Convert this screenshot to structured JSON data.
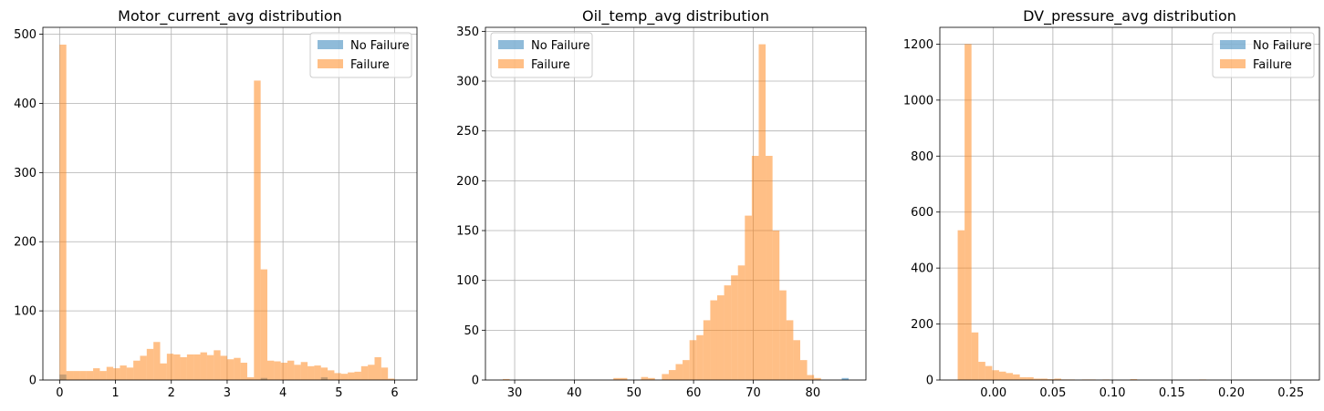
{
  "figure": {
    "background": "#ffffff"
  },
  "colors": {
    "no_failure": "#1f77b4",
    "failure": "#ff7f0e",
    "grid": "#b0b0b0",
    "axis": "#000000"
  },
  "chart_data": [
    {
      "type": "bar",
      "title": "Motor_current_avg distribution",
      "xlabel": "",
      "ylabel": "",
      "xlim": [
        -0.3,
        6.4
      ],
      "ylim": [
        0,
        510
      ],
      "xticks": [
        0,
        1,
        2,
        3,
        4,
        5,
        6
      ],
      "xtick_labels": [
        "0",
        "1",
        "2",
        "3",
        "4",
        "5",
        "6"
      ],
      "yticks": [
        0,
        100,
        200,
        300,
        400,
        500
      ],
      "ytick_labels": [
        "0",
        "100",
        "200",
        "300",
        "400",
        "500"
      ],
      "grid": true,
      "legend_position": "upper right",
      "bin_edges": [
        0.0,
        0.12,
        0.24,
        0.36,
        0.48,
        0.6,
        0.72,
        0.84,
        0.96,
        1.08,
        1.2,
        1.32,
        1.44,
        1.56,
        1.68,
        1.8,
        1.92,
        2.04,
        2.16,
        2.28,
        2.4,
        2.52,
        2.64,
        2.76,
        2.88,
        3.0,
        3.12,
        3.24,
        3.36,
        3.48,
        3.6,
        3.72,
        3.84,
        3.96,
        4.08,
        4.2,
        4.32,
        4.44,
        4.56,
        4.68,
        4.8,
        4.92,
        5.04,
        5.16,
        5.28,
        5.4,
        5.52,
        5.64,
        5.76,
        5.88,
        6.0
      ],
      "series": [
        {
          "name": "No Failure",
          "color": "#1f77b4",
          "alpha": 0.5,
          "values": [
            8,
            0,
            0,
            0,
            0,
            0,
            0,
            0,
            0,
            0,
            0,
            0,
            0,
            0,
            0,
            0,
            0,
            0,
            0,
            0,
            0,
            0,
            0,
            0,
            0,
            0,
            0,
            0,
            0,
            0,
            3,
            0,
            0,
            0,
            0,
            0,
            0,
            0,
            0,
            4,
            0,
            0,
            0,
            0,
            0,
            0,
            0,
            0,
            0,
            0
          ]
        },
        {
          "name": "Failure",
          "color": "#ff7f0e",
          "alpha": 0.5,
          "values": [
            485,
            13,
            13,
            13,
            13,
            17,
            13,
            19,
            17,
            21,
            18,
            28,
            35,
            45,
            55,
            24,
            38,
            37,
            33,
            37,
            37,
            40,
            36,
            43,
            35,
            30,
            32,
            25,
            4,
            433,
            160,
            28,
            27,
            25,
            28,
            22,
            26,
            20,
            21,
            18,
            14,
            10,
            9,
            11,
            12,
            20,
            22,
            33,
            18,
            2
          ]
        }
      ]
    },
    {
      "type": "bar",
      "title": "Oil_temp_avg distribution",
      "xlabel": "",
      "ylabel": "",
      "xlim": [
        25.1,
        88.9
      ],
      "ylim": [
        0,
        354
      ],
      "xticks": [
        30,
        40,
        50,
        60,
        70,
        80
      ],
      "xtick_labels": [
        "30",
        "40",
        "50",
        "60",
        "70",
        "80"
      ],
      "yticks": [
        0,
        50,
        100,
        150,
        200,
        250,
        300,
        350
      ],
      "ytick_labels": [
        "0",
        "50",
        "100",
        "150",
        "200",
        "250",
        "300",
        "350"
      ],
      "grid": true,
      "legend_position": "upper left",
      "bin_edges": [
        28.0,
        29.16,
        30.32,
        31.48,
        32.64,
        33.8,
        34.96,
        36.12,
        37.28,
        38.44,
        39.6,
        40.76,
        41.92,
        43.08,
        44.24,
        45.4,
        46.56,
        47.72,
        48.88,
        50.04,
        51.2,
        52.36,
        53.52,
        54.68,
        55.84,
        57.0,
        58.16,
        59.32,
        60.48,
        61.64,
        62.8,
        63.96,
        65.12,
        66.28,
        67.44,
        68.6,
        69.76,
        70.92,
        72.08,
        73.24,
        74.4,
        75.56,
        76.72,
        77.88,
        79.04,
        80.2,
        81.36,
        82.52,
        83.68,
        84.84,
        86.0
      ],
      "series": [
        {
          "name": "No Failure",
          "color": "#1f77b4",
          "alpha": 0.5,
          "values": [
            0,
            0,
            0,
            0,
            0,
            0,
            0,
            0,
            0,
            0,
            0,
            0,
            0,
            0,
            0,
            0,
            0,
            0,
            0,
            0,
            0,
            0,
            0,
            0,
            0,
            0,
            0,
            0,
            0,
            0,
            0,
            0,
            0,
            0,
            0,
            0,
            0,
            0,
            0,
            0,
            0,
            0,
            0,
            0,
            0,
            0,
            0,
            0,
            0,
            2
          ]
        },
        {
          "name": "Failure",
          "color": "#ff7f0e",
          "alpha": 0.5,
          "values": [
            1,
            0,
            0,
            0,
            0,
            0,
            0,
            0,
            0,
            0,
            0,
            0,
            0,
            0,
            0,
            0,
            2,
            2,
            0,
            0,
            3,
            2,
            0,
            6,
            10,
            16,
            20,
            40,
            45,
            60,
            80,
            85,
            95,
            105,
            115,
            165,
            225,
            337,
            225,
            150,
            90,
            60,
            40,
            20,
            5,
            2,
            0,
            0,
            0,
            0
          ]
        }
      ]
    },
    {
      "type": "bar",
      "title": "DV_pressure_avg distribution",
      "xlabel": "",
      "ylabel": "",
      "xlim": [
        -0.045,
        0.274
      ],
      "ylim": [
        0,
        1260
      ],
      "xticks": [
        0.0,
        0.05,
        0.1,
        0.15,
        0.2,
        0.25
      ],
      "xtick_labels": [
        "0.00",
        "0.05",
        "0.10",
        "0.15",
        "0.20",
        "0.25"
      ],
      "yticks": [
        0,
        200,
        400,
        600,
        800,
        1000,
        1200
      ],
      "ytick_labels": [
        "0",
        "200",
        "400",
        "600",
        "800",
        "1000",
        "1200"
      ],
      "grid": true,
      "legend_position": "upper right",
      "bin_edges": [
        -0.03,
        -0.0242,
        -0.0184,
        -0.0126,
        -0.0068,
        -0.001,
        0.0048,
        0.0106,
        0.0164,
        0.0222,
        0.028,
        0.0338,
        0.0396,
        0.0454,
        0.0512,
        0.057,
        0.0628,
        0.0686,
        0.0744,
        0.0802,
        0.086,
        0.0918,
        0.0976,
        0.1034,
        0.1092,
        0.115,
        0.1208,
        0.1266,
        0.1324,
        0.1382,
        0.144,
        0.1498,
        0.1556,
        0.1614,
        0.1672,
        0.173,
        0.1788,
        0.1846,
        0.1904,
        0.1962,
        0.202,
        0.2078,
        0.2136,
        0.2194,
        0.2252,
        0.231,
        0.2368,
        0.2426,
        0.2484,
        0.2542,
        0.26
      ],
      "series": [
        {
          "name": "No Failure",
          "color": "#1f77b4",
          "alpha": 0.5,
          "values": [
            0,
            0,
            0,
            0,
            0,
            0,
            0,
            0,
            0,
            0,
            0,
            0,
            0,
            0,
            0,
            0,
            0,
            0,
            0,
            0,
            0,
            0,
            0,
            0,
            0,
            0,
            0,
            0,
            0,
            0,
            0,
            0,
            0,
            0,
            0,
            0,
            0,
            0,
            0,
            0,
            0,
            0,
            0,
            0,
            0,
            0,
            0,
            0,
            0,
            0
          ]
        },
        {
          "name": "Failure",
          "color": "#ff7f0e",
          "alpha": 0.5,
          "values": [
            535,
            1200,
            170,
            65,
            50,
            35,
            30,
            25,
            20,
            10,
            10,
            5,
            5,
            3,
            5,
            2,
            2,
            0,
            2,
            2,
            0,
            2,
            0,
            0,
            0,
            3,
            0,
            0,
            0,
            0,
            0,
            0,
            0,
            0,
            0,
            2,
            0,
            0,
            0,
            0,
            0,
            0,
            0,
            0,
            0,
            0,
            0,
            0,
            0,
            0
          ]
        }
      ]
    }
  ]
}
